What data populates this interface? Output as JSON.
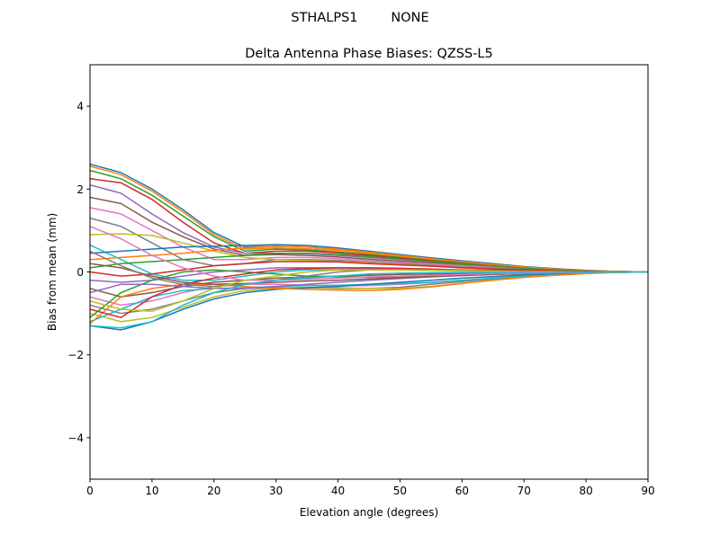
{
  "chart_data": {
    "type": "line",
    "suptitle": "STHALPS1        NONE",
    "title": "Delta Antenna Phase Biases: QZSS-L5",
    "xlabel": "Elevation angle (degrees)",
    "ylabel": "Bias from mean (mm)",
    "xlim": [
      0,
      90
    ],
    "ylim": [
      -5,
      5
    ],
    "xticks": [
      0,
      10,
      20,
      30,
      40,
      50,
      60,
      70,
      80,
      90
    ],
    "yticks": [
      -4,
      -2,
      0,
      2,
      4
    ],
    "ytick_labels": [
      "−4",
      "−2",
      "0",
      "2",
      "4"
    ],
    "grid": false,
    "colors": [
      "#1f77b4",
      "#ff7f0e",
      "#2ca02c",
      "#d62728",
      "#9467bd",
      "#8c564b",
      "#e377c2",
      "#7f7f7f",
      "#bcbd22",
      "#17becf"
    ],
    "x": [
      0,
      5,
      10,
      15,
      20,
      25,
      30,
      35,
      40,
      45,
      50,
      55,
      60,
      65,
      70,
      75,
      80,
      85,
      90
    ],
    "series": [
      {
        "values": [
          2.6,
          2.4,
          2.0,
          1.5,
          0.95,
          0.6,
          0.62,
          0.6,
          0.55,
          0.48,
          0.4,
          0.32,
          0.25,
          0.18,
          0.12,
          0.07,
          0.04,
          0.01,
          0
        ]
      },
      {
        "values": [
          2.55,
          2.35,
          1.95,
          1.45,
          0.9,
          0.55,
          0.58,
          0.56,
          0.52,
          0.45,
          0.38,
          0.3,
          0.23,
          0.17,
          0.11,
          0.07,
          0.03,
          0.01,
          0
        ]
      },
      {
        "values": [
          2.45,
          2.25,
          1.85,
          1.35,
          0.85,
          0.5,
          0.55,
          0.53,
          0.48,
          0.42,
          0.35,
          0.28,
          0.22,
          0.16,
          0.1,
          0.06,
          0.03,
          0.01,
          0
        ]
      },
      {
        "values": [
          2.25,
          2.15,
          1.75,
          1.2,
          0.7,
          0.45,
          0.5,
          0.5,
          0.46,
          0.4,
          0.33,
          0.27,
          0.2,
          0.15,
          0.1,
          0.06,
          0.03,
          0.01,
          0
        ]
      },
      {
        "values": [
          2.1,
          1.9,
          1.4,
          0.95,
          0.6,
          0.45,
          0.45,
          0.44,
          0.4,
          0.35,
          0.3,
          0.24,
          0.18,
          0.13,
          0.09,
          0.05,
          0.02,
          0.01,
          0
        ]
      },
      {
        "values": [
          1.8,
          1.65,
          1.2,
          0.85,
          0.55,
          0.4,
          0.42,
          0.4,
          0.36,
          0.31,
          0.26,
          0.21,
          0.16,
          0.12,
          0.08,
          0.05,
          0.02,
          0,
          0
        ]
      },
      {
        "values": [
          1.55,
          1.4,
          1.0,
          0.6,
          0.3,
          0.3,
          0.35,
          0.35,
          0.32,
          0.28,
          0.23,
          0.19,
          0.15,
          0.11,
          0.07,
          0.04,
          0.02,
          0,
          0
        ]
      },
      {
        "values": [
          1.3,
          1.1,
          0.7,
          0.3,
          0.15,
          0.2,
          0.3,
          0.3,
          0.28,
          0.24,
          0.2,
          0.16,
          0.12,
          0.09,
          0.06,
          0.03,
          0.01,
          0,
          0
        ]
      },
      {
        "values": [
          0.9,
          0.92,
          0.88,
          0.7,
          0.5,
          0.35,
          0.3,
          0.28,
          0.25,
          0.22,
          0.18,
          0.14,
          0.1,
          0.07,
          0.05,
          0.03,
          0.01,
          0,
          0
        ]
      },
      {
        "values": [
          0.65,
          0.3,
          -0.05,
          -0.2,
          -0.2,
          -0.1,
          0.0,
          0.05,
          0.06,
          0.06,
          0.05,
          0.04,
          0.03,
          0.02,
          0.01,
          0.01,
          0,
          0,
          0
        ]
      },
      {
        "values": [
          0.45,
          0.5,
          0.55,
          0.6,
          0.62,
          0.64,
          0.66,
          0.64,
          0.58,
          0.5,
          0.42,
          0.34,
          0.27,
          0.2,
          0.13,
          0.08,
          0.04,
          0.01,
          0
        ]
      },
      {
        "values": [
          0.3,
          0.35,
          0.4,
          0.45,
          0.52,
          0.58,
          0.62,
          0.6,
          0.55,
          0.48,
          0.4,
          0.32,
          0.25,
          0.18,
          0.12,
          0.07,
          0.03,
          0.01,
          0
        ]
      },
      {
        "values": [
          0.1,
          0.2,
          0.25,
          0.3,
          0.35,
          0.4,
          0.45,
          0.45,
          0.42,
          0.37,
          0.31,
          0.25,
          0.19,
          0.14,
          0.09,
          0.05,
          0.02,
          0,
          0
        ]
      },
      {
        "values": [
          0.0,
          -0.1,
          -0.05,
          0.05,
          0.15,
          0.2,
          0.25,
          0.25,
          0.24,
          0.2,
          0.17,
          0.14,
          0.1,
          0.07,
          0.05,
          0.03,
          0.01,
          0,
          0
        ]
      },
      {
        "values": [
          -0.2,
          -0.25,
          -0.2,
          -0.1,
          0.0,
          0.05,
          0.1,
          0.1,
          0.1,
          0.08,
          0.07,
          0.05,
          0.04,
          0.03,
          0.02,
          0.01,
          0,
          0,
          0
        ]
      },
      {
        "values": [
          -0.4,
          -0.6,
          -0.5,
          -0.35,
          -0.25,
          -0.2,
          -0.15,
          -0.12,
          -0.1,
          -0.08,
          -0.06,
          -0.05,
          -0.04,
          -0.03,
          -0.02,
          -0.01,
          0,
          0,
          0
        ]
      },
      {
        "values": [
          -0.6,
          -0.8,
          -0.7,
          -0.5,
          -0.35,
          -0.3,
          -0.3,
          -0.32,
          -0.33,
          -0.33,
          -0.3,
          -0.26,
          -0.2,
          -0.15,
          -0.1,
          -0.06,
          -0.03,
          -0.01,
          0
        ]
      },
      {
        "values": [
          -0.8,
          -1.0,
          -0.9,
          -0.7,
          -0.5,
          -0.4,
          -0.38,
          -0.38,
          -0.4,
          -0.4,
          -0.37,
          -0.3,
          -0.23,
          -0.17,
          -0.11,
          -0.07,
          -0.03,
          -0.01,
          0
        ]
      },
      {
        "values": [
          -1.0,
          -1.2,
          -1.1,
          -0.85,
          -0.6,
          -0.45,
          -0.4,
          -0.38,
          -0.38,
          -0.4,
          -0.4,
          -0.35,
          -0.27,
          -0.2,
          -0.13,
          -0.08,
          -0.04,
          -0.01,
          0
        ]
      },
      {
        "values": [
          -1.2,
          -0.9,
          -0.6,
          -0.45,
          -0.4,
          -0.38,
          -0.35,
          -0.33,
          -0.32,
          -0.3,
          -0.28,
          -0.25,
          -0.2,
          -0.15,
          -0.1,
          -0.06,
          -0.03,
          -0.01,
          0
        ]
      },
      {
        "values": [
          -1.3,
          -1.4,
          -1.2,
          -0.9,
          -0.65,
          -0.5,
          -0.42,
          -0.38,
          -0.35,
          -0.3,
          -0.25,
          -0.2,
          -0.15,
          -0.11,
          -0.07,
          -0.04,
          -0.02,
          0,
          0
        ]
      },
      {
        "values": [
          -1.25,
          -0.6,
          -0.4,
          -0.3,
          -0.3,
          -0.35,
          -0.4,
          -0.42,
          -0.44,
          -0.45,
          -0.42,
          -0.36,
          -0.28,
          -0.2,
          -0.13,
          -0.08,
          -0.04,
          -0.01,
          0
        ]
      },
      {
        "values": [
          -1.1,
          -0.5,
          -0.2,
          0.0,
          0.05,
          0.0,
          -0.05,
          -0.1,
          -0.12,
          -0.13,
          -0.12,
          -0.1,
          -0.08,
          -0.06,
          -0.04,
          -0.02,
          -0.01,
          0,
          0
        ]
      },
      {
        "values": [
          -0.9,
          -1.1,
          -0.6,
          -0.3,
          -0.15,
          -0.05,
          0.05,
          0.08,
          0.1,
          0.1,
          0.09,
          0.07,
          0.05,
          0.04,
          0.03,
          0.02,
          0.01,
          0,
          0
        ]
      },
      {
        "values": [
          -0.5,
          -0.3,
          -0.3,
          -0.35,
          -0.4,
          -0.4,
          -0.35,
          -0.3,
          -0.25,
          -0.2,
          -0.16,
          -0.12,
          -0.09,
          -0.06,
          -0.04,
          -0.02,
          -0.01,
          0,
          0
        ]
      },
      {
        "values": [
          0.2,
          0.1,
          -0.1,
          -0.25,
          -0.3,
          -0.28,
          -0.25,
          -0.22,
          -0.2,
          -0.17,
          -0.14,
          -0.11,
          -0.08,
          -0.06,
          -0.04,
          -0.02,
          -0.01,
          0,
          0
        ]
      },
      {
        "values": [
          1.1,
          0.8,
          0.4,
          0.1,
          -0.1,
          -0.2,
          -0.2,
          -0.18,
          -0.15,
          -0.12,
          -0.1,
          -0.08,
          -0.06,
          -0.04,
          -0.03,
          -0.02,
          -0.01,
          0,
          0
        ]
      },
      {
        "values": [
          0.5,
          0.15,
          -0.15,
          -0.3,
          -0.35,
          -0.3,
          -0.2,
          -0.1,
          0.0,
          0.05,
          0.06,
          0.05,
          0.04,
          0.03,
          0.02,
          0.01,
          0,
          0,
          0
        ]
      },
      {
        "values": [
          -0.7,
          -0.9,
          -0.95,
          -0.7,
          -0.4,
          -0.2,
          -0.1,
          0.0,
          0.05,
          0.05,
          0.05,
          0.04,
          0.03,
          0.02,
          0.01,
          0.01,
          0,
          0,
          0
        ]
      },
      {
        "values": [
          -1.3,
          -1.35,
          -1.2,
          -0.8,
          -0.5,
          -0.3,
          -0.2,
          -0.15,
          -0.1,
          -0.05,
          -0.03,
          -0.02,
          -0.01,
          -0.01,
          0,
          0,
          0,
          0,
          0
        ]
      }
    ]
  }
}
